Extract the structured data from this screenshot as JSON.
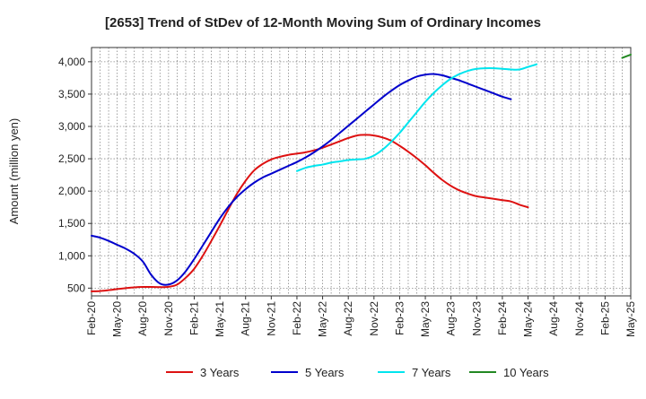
{
  "chart_data": {
    "type": "line",
    "title": "[2653]  Trend of StDev of 12-Month Moving Sum of Ordinary Incomes",
    "xlabel": "",
    "ylabel": "Amount (million yen)",
    "x_ticks": [
      "Feb-20",
      "May-20",
      "Aug-20",
      "Nov-20",
      "Feb-21",
      "May-21",
      "Aug-21",
      "Nov-21",
      "Feb-22",
      "May-22",
      "Aug-22",
      "Nov-22",
      "Feb-23",
      "May-23",
      "Aug-23",
      "Nov-23",
      "Feb-24",
      "May-24",
      "Aug-24",
      "Nov-24",
      "Feb-25",
      "May-25"
    ],
    "x_range": [
      0,
      63
    ],
    "y_ticks": [
      500,
      1000,
      1500,
      2000,
      2500,
      3000,
      3500,
      4000
    ],
    "y_tick_labels": [
      "500",
      "1,000",
      "1,500",
      "2,000",
      "2,500",
      "3,000",
      "3,500",
      "4,000"
    ],
    "ylim": [
      380,
      4220
    ],
    "grid": true,
    "legend_position": "bottom",
    "series": [
      {
        "name": "3 Years",
        "color": "#dd1111",
        "start_index": 0,
        "values": [
          450,
          455,
          468,
          485,
          500,
          512,
          518,
          518,
          516,
          520,
          555,
          660,
          800,
          1000,
          1230,
          1470,
          1720,
          1960,
          2160,
          2320,
          2420,
          2490,
          2530,
          2560,
          2580,
          2600,
          2630,
          2670,
          2720,
          2770,
          2820,
          2860,
          2870,
          2860,
          2830,
          2780,
          2700,
          2610,
          2510,
          2400,
          2280,
          2170,
          2080,
          2010,
          1960,
          1920,
          1900,
          1880,
          1860,
          1840,
          1790,
          1750
        ]
      },
      {
        "name": "5 Years",
        "color": "#0000cc",
        "start_index": 0,
        "values": [
          1310,
          1280,
          1230,
          1170,
          1110,
          1030,
          910,
          700,
          570,
          555,
          620,
          760,
          950,
          1160,
          1370,
          1580,
          1760,
          1910,
          2030,
          2130,
          2210,
          2270,
          2330,
          2390,
          2450,
          2520,
          2600,
          2690,
          2790,
          2900,
          3010,
          3120,
          3230,
          3340,
          3450,
          3550,
          3640,
          3710,
          3770,
          3800,
          3810,
          3790,
          3750,
          3710,
          3660,
          3610,
          3560,
          3510,
          3460,
          3420
        ]
      },
      {
        "name": "7 Years",
        "color": "#00e5ee",
        "start_index": 24,
        "values": [
          2310,
          2360,
          2390,
          2410,
          2440,
          2460,
          2480,
          2490,
          2500,
          2550,
          2640,
          2760,
          2900,
          3060,
          3220,
          3380,
          3520,
          3640,
          3740,
          3810,
          3860,
          3890,
          3900,
          3900,
          3890,
          3880,
          3880,
          3920,
          3960
        ]
      },
      {
        "name": "10 Years",
        "color": "#228822",
        "start_index": 62,
        "values": [
          4060,
          4110
        ]
      }
    ]
  }
}
